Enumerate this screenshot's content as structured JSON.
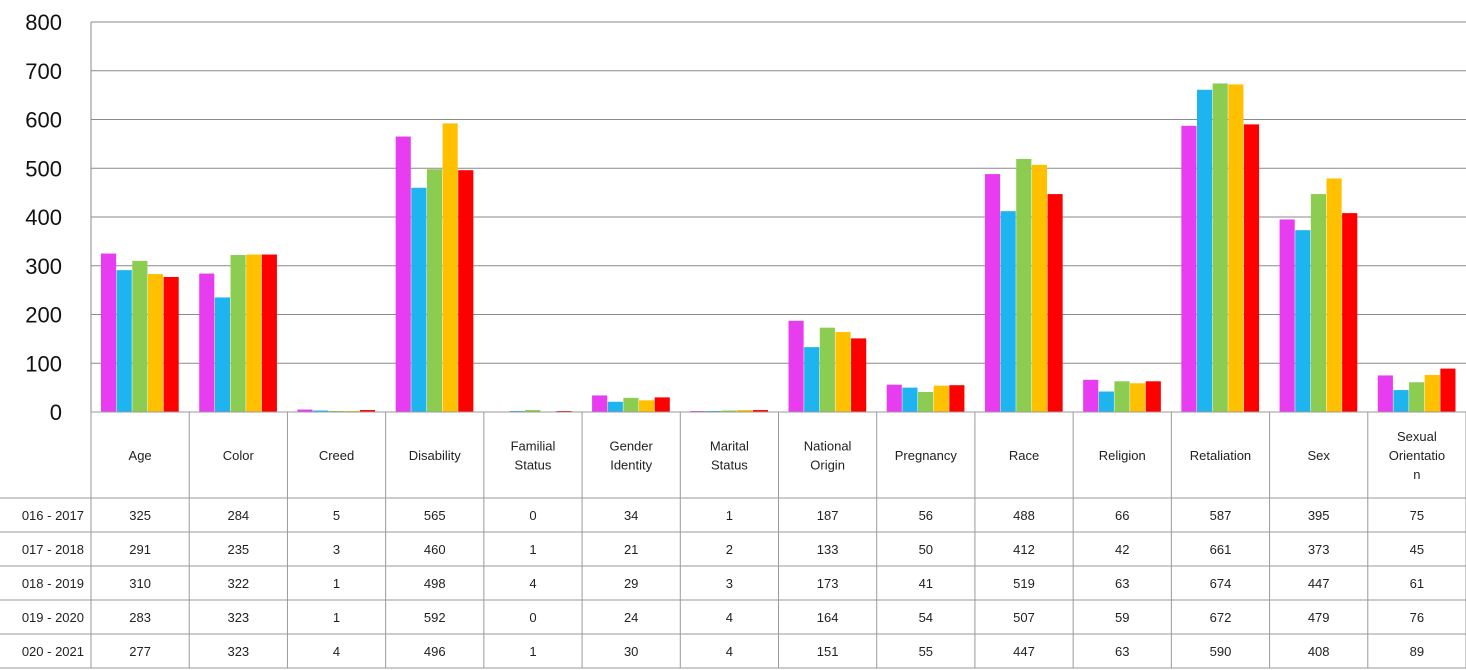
{
  "chart_data": {
    "type": "bar",
    "title": "",
    "xlabel": "",
    "ylabel": "",
    "ylim": [
      0,
      800
    ],
    "yticks": [
      0,
      100,
      200,
      300,
      400,
      500,
      600,
      700,
      800
    ],
    "grid": true,
    "legend": "table-below",
    "categories": [
      "Age",
      "Color",
      "Creed",
      "Disability",
      "Familial Status",
      "Gender Identity",
      "Marital Status",
      "National Origin",
      "Pregnancy",
      "Race",
      "Religion",
      "Retaliation",
      "Sex",
      "Sexual Orientation"
    ],
    "category_lines": [
      [
        "Age"
      ],
      [
        "Color"
      ],
      [
        "Creed"
      ],
      [
        "Disability"
      ],
      [
        "Familial",
        "Status"
      ],
      [
        "Gender",
        "Identity"
      ],
      [
        "Marital",
        "Status"
      ],
      [
        "National",
        "Origin"
      ],
      [
        "Pregnancy"
      ],
      [
        "Race"
      ],
      [
        "Religion"
      ],
      [
        "Retaliation"
      ],
      [
        "Sex"
      ],
      [
        "Sexual",
        "Orientatio",
        "n"
      ]
    ],
    "series": [
      {
        "name": "016 - 2017",
        "color": "#e83cf0",
        "values": [
          325,
          284,
          5,
          565,
          0,
          34,
          1,
          187,
          56,
          488,
          66,
          587,
          395,
          75
        ]
      },
      {
        "name": "017 - 2018",
        "color": "#1eb4f0",
        "values": [
          291,
          235,
          3,
          460,
          1,
          21,
          2,
          133,
          50,
          412,
          42,
          661,
          373,
          45
        ]
      },
      {
        "name": "018 - 2019",
        "color": "#8ccc50",
        "values": [
          310,
          322,
          1,
          498,
          4,
          29,
          3,
          173,
          41,
          519,
          63,
          674,
          447,
          61
        ]
      },
      {
        "name": "019 - 2020",
        "color": "#ffc000",
        "values": [
          283,
          323,
          1,
          592,
          0,
          24,
          4,
          164,
          54,
          507,
          59,
          672,
          479,
          76
        ]
      },
      {
        "name": "020 - 2021",
        "color": "#ff0000",
        "values": [
          277,
          323,
          4,
          496,
          1,
          30,
          4,
          151,
          55,
          447,
          63,
          590,
          408,
          89
        ]
      }
    ]
  }
}
